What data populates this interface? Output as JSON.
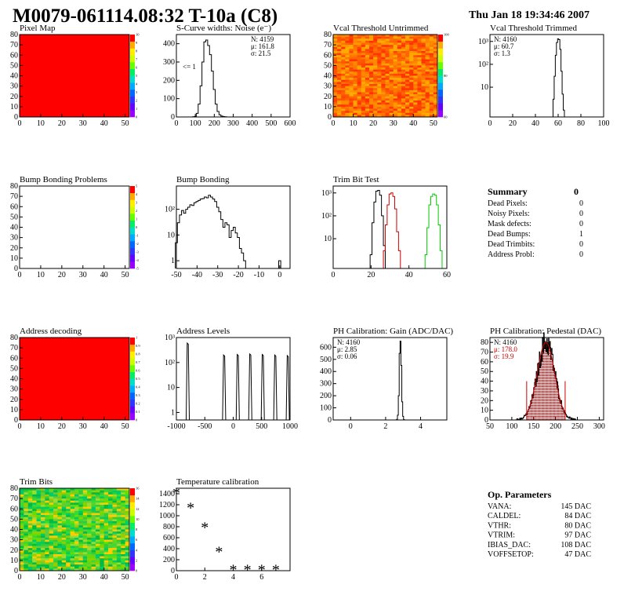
{
  "header": {
    "title": "M0079-061114.08:32 T-10a (C8)",
    "timestamp": "Thu Jan 18 19:34:46 2007"
  },
  "colors": {
    "map_red": "#ff0000",
    "palette_bottom": "#9900ff",
    "palette_top": "#ff0000",
    "trim_black": "#000000",
    "trim_red": "#cc0000",
    "trim_green": "#00cc00",
    "pedestal_fit": "#cc0000"
  },
  "summary": {
    "title": "Summary",
    "total": "0",
    "rows": [
      {
        "label": "Dead Pixels:",
        "value": "0"
      },
      {
        "label": "Noisy Pixels:",
        "value": "0"
      },
      {
        "label": "Mask defects:",
        "value": "0"
      },
      {
        "label": "Dead Bumps:",
        "value": "1"
      },
      {
        "label": "Dead Trimbits:",
        "value": "0"
      },
      {
        "label": "Address Probl:",
        "value": "0"
      }
    ]
  },
  "op_params": {
    "title": "Op. Parameters",
    "rows": [
      {
        "label": "VANA:",
        "value": "145 DAC"
      },
      {
        "label": "CALDEL:",
        "value": "84 DAC"
      },
      {
        "label": "VTHR:",
        "value": "80 DAC"
      },
      {
        "label": "VTRIM:",
        "value": "97 DAC"
      },
      {
        "label": "IBIAS_DAC:",
        "value": "108 DAC"
      },
      {
        "label": "VOFFSETOP:",
        "value": "47 DAC"
      }
    ]
  },
  "chart_data": [
    {
      "id": "pixel-map",
      "type": "heatmap",
      "title": "Pixel Map",
      "xlim": [
        0,
        52
      ],
      "ylim": [
        0,
        80
      ],
      "xticks": [
        "0",
        "10",
        "20",
        "30",
        "40",
        "50"
      ],
      "yticks": [
        "0",
        "10",
        "20",
        "30",
        "40",
        "50",
        "60",
        "70",
        "80"
      ],
      "fill": "uniform-red",
      "zticks": [
        "0",
        "1",
        "2",
        "3",
        "4",
        "5",
        "6",
        "7",
        "8",
        "9",
        "10"
      ]
    },
    {
      "id": "scurve-widths",
      "type": "histogram",
      "title": "S-Curve widths: Noise (e⁻)",
      "xlim": [
        0,
        600
      ],
      "ylim": [
        0,
        450
      ],
      "xticks": [
        "0",
        "100",
        "200",
        "300",
        "400",
        "500",
        "600"
      ],
      "yticks": [
        "0",
        "100",
        "200",
        "300",
        "400"
      ],
      "stats": [
        "N: 4159",
        "μ: 161.8",
        "σ: 21.5"
      ],
      "annotation": "<= 1",
      "bins_x": [
        90,
        100,
        110,
        120,
        130,
        140,
        150,
        160,
        170,
        180,
        190,
        200,
        210,
        220,
        230,
        240,
        250,
        260,
        270
      ],
      "values": [
        1,
        3,
        20,
        70,
        170,
        300,
        410,
        420,
        390,
        340,
        250,
        150,
        70,
        30,
        12,
        5,
        2,
        1,
        0
      ]
    },
    {
      "id": "vcal-untrimmed",
      "type": "heatmap",
      "title": "Vcal Threshold Untrimmed",
      "xlim": [
        0,
        52
      ],
      "ylim": [
        0,
        80
      ],
      "xticks": [
        "0",
        "10",
        "20",
        "30",
        "40",
        "50"
      ],
      "yticks": [
        "0",
        "10",
        "20",
        "30",
        "40",
        "50",
        "60",
        "70",
        "80"
      ],
      "fill": "noise-orange",
      "zticks": [
        "60",
        "80",
        "100"
      ]
    },
    {
      "id": "vcal-trimmed",
      "type": "histogram",
      "title": "Vcal Threshold Trimmed",
      "xlim": [
        0,
        100
      ],
      "log_y": true,
      "ylim": [
        0.5,
        2000
      ],
      "xticks": [
        "0",
        "20",
        "40",
        "60",
        "80",
        "100"
      ],
      "yticks": [
        "10",
        "10²",
        "10³"
      ],
      "stats": [
        "N: 4160",
        "μ: 60.7",
        "σ: 1.3"
      ],
      "bins_x": [
        55,
        56,
        57,
        58,
        59,
        60,
        61,
        62,
        63,
        64,
        65,
        66
      ],
      "values": [
        0,
        3,
        30,
        250,
        900,
        1300,
        1200,
        450,
        50,
        5,
        1,
        0
      ]
    },
    {
      "id": "bump-problems",
      "type": "heatmap",
      "title": "Bump Bonding Problems",
      "xlim": [
        0,
        52
      ],
      "ylim": [
        0,
        80
      ],
      "xticks": [
        "0",
        "10",
        "20",
        "30",
        "40",
        "50"
      ],
      "yticks": [
        "0",
        "10",
        "20",
        "30",
        "40",
        "50",
        "60",
        "70",
        "80"
      ],
      "fill": "empty",
      "zticks": [
        "-5",
        "-4",
        "-3",
        "-2",
        "-1",
        "0",
        "1",
        "2",
        "3",
        "4",
        "5"
      ]
    },
    {
      "id": "bump-bonding",
      "type": "histogram",
      "title": "Bump Bonding",
      "xlim": [
        -50,
        5
      ],
      "log_y": true,
      "ylim": [
        0.5,
        800
      ],
      "xticks": [
        "-50",
        "-40",
        "-30",
        "-20",
        "-10",
        "0"
      ],
      "yticks": [
        "1",
        "10",
        "10²"
      ],
      "bins_x": [
        -50,
        -49,
        -48,
        -47,
        -46,
        -45,
        -44,
        -43,
        -42,
        -41,
        -40,
        -39,
        -38,
        -37,
        -36,
        -35,
        -34,
        -33,
        -32,
        -31,
        -30,
        -29,
        -28,
        -27,
        -26,
        -25,
        -24,
        -23,
        -22,
        -21,
        -20,
        -19,
        -18,
        -17,
        -16,
        -15,
        -1,
        0
      ],
      "values": [
        5,
        30,
        60,
        90,
        70,
        100,
        120,
        150,
        140,
        180,
        200,
        220,
        250,
        260,
        300,
        280,
        350,
        300,
        250,
        200,
        120,
        80,
        40,
        20,
        30,
        25,
        8,
        15,
        20,
        12,
        8,
        3,
        2,
        1,
        0,
        0,
        0,
        1
      ]
    },
    {
      "id": "trim-bit-test",
      "type": "histogram",
      "title": "Trim Bit Test",
      "xlim": [
        0,
        60
      ],
      "log_y": true,
      "ylim": [
        0.5,
        2000
      ],
      "xticks": [
        "0",
        "20",
        "40",
        "60"
      ],
      "yticks": [
        "10",
        "10²",
        "10³"
      ],
      "series": [
        {
          "color_key": "trim_black",
          "bins_x": [
            19,
            20,
            21,
            22,
            23,
            24,
            25,
            26,
            27
          ],
          "values": [
            0,
            2,
            50,
            400,
            1200,
            1300,
            800,
            100,
            5
          ]
        },
        {
          "color_key": "trim_red",
          "bins_x": [
            26,
            27,
            28,
            29,
            30,
            31,
            32,
            33,
            34,
            35,
            36
          ],
          "values": [
            0,
            3,
            40,
            300,
            900,
            1000,
            700,
            200,
            20,
            3,
            0
          ]
        },
        {
          "color_key": "trim_green",
          "bins_x": [
            48,
            49,
            50,
            51,
            52,
            53,
            54,
            55,
            56,
            57,
            58
          ],
          "values": [
            0,
            2,
            30,
            300,
            700,
            900,
            800,
            300,
            40,
            3,
            0
          ]
        }
      ]
    },
    {
      "id": "address-decoding",
      "type": "heatmap",
      "title": "Address decoding",
      "xlim": [
        0,
        52
      ],
      "ylim": [
        0,
        80
      ],
      "xticks": [
        "0",
        "10",
        "20",
        "30",
        "40",
        "50"
      ],
      "yticks": [
        "0",
        "10",
        "20",
        "30",
        "40",
        "50",
        "60",
        "70",
        "80"
      ],
      "fill": "uniform-red",
      "zticks": [
        "0",
        "0.1",
        "0.2",
        "0.3",
        "0.4",
        "0.5",
        "0.6",
        "0.7",
        "0.8",
        "0.9",
        "1"
      ]
    },
    {
      "id": "address-levels",
      "type": "histogram",
      "title": "Address Levels",
      "xlim": [
        -1000,
        1000
      ],
      "log_y": true,
      "ylim": [
        0.5,
        1000
      ],
      "xticks": [
        "-1000",
        "-500",
        "0",
        "500",
        "1000"
      ],
      "yticks": [
        "1",
        "10",
        "10²",
        "10³"
      ],
      "peaks": [
        {
          "center": -800,
          "height": 600
        },
        {
          "center": -160,
          "height": 200
        },
        {
          "center": 80,
          "height": 210
        },
        {
          "center": 300,
          "height": 220
        },
        {
          "center": 520,
          "height": 210
        },
        {
          "center": 740,
          "height": 200
        },
        {
          "center": 960,
          "height": 190
        }
      ]
    },
    {
      "id": "ph-gain",
      "type": "histogram",
      "title": "PH Calibration: Gain (ADC/DAC)",
      "xlim": [
        -1,
        5.5
      ],
      "ylim": [
        0,
        680
      ],
      "xticks": [
        "0",
        "2",
        "4"
      ],
      "yticks": [
        "0",
        "100",
        "200",
        "300",
        "400",
        "500",
        "600"
      ],
      "stats": [
        "N: 4160",
        "μ: 2.85",
        "σ: 0.06"
      ],
      "bins_x": [
        2.6,
        2.65,
        2.7,
        2.75,
        2.8,
        2.85,
        2.9,
        2.95,
        3.0,
        3.05,
        3.1
      ],
      "values": [
        0,
        5,
        40,
        200,
        550,
        650,
        450,
        150,
        30,
        3,
        0
      ]
    },
    {
      "id": "ph-pedestal",
      "type": "histogram",
      "title": "PH Calibration: Pedestal (DAC)",
      "xlim": [
        50,
        310
      ],
      "ylim": [
        0,
        85
      ],
      "xticks": [
        "50",
        "100",
        "150",
        "200",
        "250",
        "300"
      ],
      "yticks": [
        "0",
        "10",
        "20",
        "30",
        "40",
        "50",
        "60",
        "70",
        "80"
      ],
      "stats": [
        "N: 4160",
        "μ: 178.0",
        "σ: 19.9"
      ],
      "fit_mean": 178.0,
      "fit_sigma": 19.9,
      "fit_amp": 80,
      "fit_range": [
        134,
        222
      ],
      "hist_range": [
        110,
        245
      ]
    },
    {
      "id": "trim-bits",
      "type": "heatmap",
      "title": "Trim Bits",
      "xlim": [
        0,
        52
      ],
      "ylim": [
        0,
        80
      ],
      "xticks": [
        "0",
        "10",
        "20",
        "30",
        "40",
        "50"
      ],
      "yticks": [
        "0",
        "10",
        "20",
        "30",
        "40",
        "50",
        "60",
        "70",
        "80"
      ],
      "fill": "noise-green",
      "zticks": [
        "0",
        "2",
        "4",
        "6",
        "8",
        "10",
        "12",
        "14",
        "16"
      ]
    },
    {
      "id": "temperature-calibration",
      "type": "scatter",
      "title": "Temperature calibration",
      "xlim": [
        0,
        8
      ],
      "ylim": [
        0,
        1500
      ],
      "xticks": [
        "0",
        "2",
        "4",
        "6"
      ],
      "yticks": [
        "0",
        "200",
        "400",
        "600",
        "800",
        "1000",
        "1200",
        "1400"
      ],
      "x": [
        0,
        1,
        2,
        3,
        4,
        5,
        6,
        7
      ],
      "y": [
        1450,
        1180,
        820,
        380,
        50,
        50,
        50,
        50
      ]
    }
  ]
}
